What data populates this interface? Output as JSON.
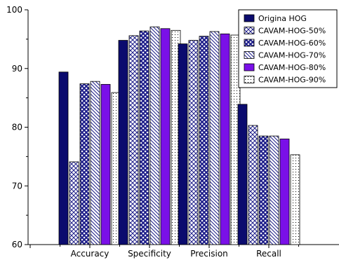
{
  "chart_data": {
    "type": "bar",
    "categories": [
      "Accuracy",
      "Specificity",
      "Precision",
      "Recall"
    ],
    "series": [
      {
        "name": "Origina HOG",
        "values": [
          89.4,
          94.8,
          94.2,
          83.9
        ],
        "color": "#0b0b6e",
        "pattern": "solid"
      },
      {
        "name": "CAVAM-HOG-50%",
        "values": [
          74.1,
          95.6,
          94.8,
          80.3
        ],
        "color": "#1d1d8a",
        "pattern": "crosshatch"
      },
      {
        "name": "CAVAM-HOG-60%",
        "values": [
          87.4,
          96.4,
          95.5,
          78.5
        ],
        "color": "#1d1d8a",
        "pattern": "diamond"
      },
      {
        "name": "CAVAM-HOG-70%",
        "values": [
          87.8,
          97.1,
          96.3,
          78.5
        ],
        "color": "#1d1d8a",
        "pattern": "diagonal"
      },
      {
        "name": "CAVAM-HOG-80%",
        "values": [
          87.3,
          96.8,
          95.9,
          78.0
        ],
        "color": "#7a10e8",
        "pattern": "solid"
      },
      {
        "name": "CAVAM-HOG-90%",
        "values": [
          85.9,
          96.5,
          95.7,
          75.3
        ],
        "color": "#000000",
        "pattern": "dots"
      }
    ],
    "ylim": [
      60,
      100
    ],
    "yticks": [
      60,
      70,
      80,
      90,
      100
    ],
    "legend_position": "top-right",
    "grid": false
  }
}
